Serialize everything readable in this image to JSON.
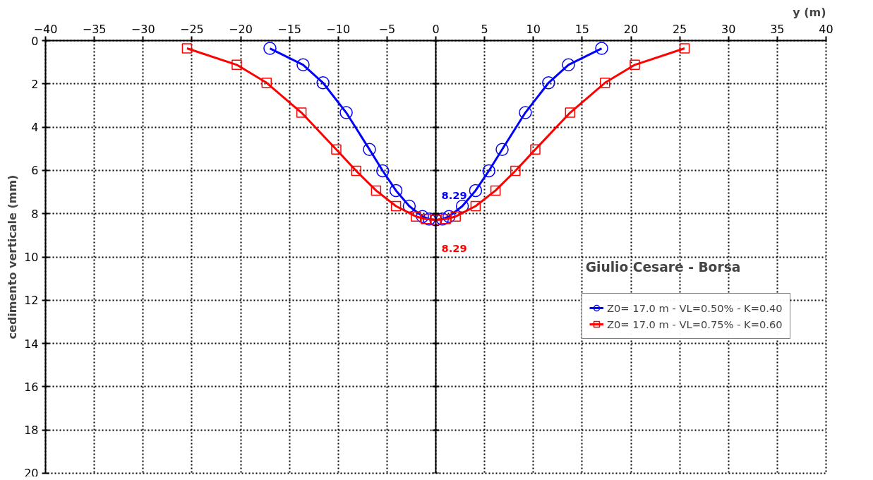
{
  "chart_data": {
    "type": "line",
    "title": "Giulio Cesare - Borsa",
    "xlabel": "y (m)",
    "ylabel": "cedimento verticale (mm)",
    "xlim": [
      -40,
      40
    ],
    "xticks": [
      -40,
      -35,
      -30,
      -25,
      -20,
      -15,
      -10,
      -5,
      0,
      5,
      10,
      15,
      20,
      25,
      30,
      35,
      40
    ],
    "ylim": [
      20,
      0
    ],
    "yticks": [
      0,
      2,
      4,
      6,
      8,
      10,
      12,
      14,
      16,
      18,
      20
    ],
    "grid": true,
    "legend": "right",
    "annotations": [
      {
        "text": "8.29",
        "x": 0,
        "y": 8.29
      },
      {
        "text": "8.29",
        "x": 0,
        "y": 8.29
      }
    ],
    "series": [
      {
        "name": "Z0= 17.0 m - VL=0.50% - K=0.40",
        "color": "#0000ff",
        "marker": "circle",
        "x": [
          -17,
          -13.6,
          -11.56,
          -9.18,
          -6.8,
          -5.44,
          -4.08,
          -2.72,
          -1.36,
          -0.68,
          0,
          0.68,
          1.36,
          2.72,
          4.08,
          5.44,
          6.8,
          9.18,
          11.56,
          13.6,
          17
        ],
        "values": [
          0.36,
          1.12,
          1.95,
          3.33,
          5.03,
          6.02,
          6.93,
          7.65,
          8.13,
          8.25,
          8.29,
          8.25,
          8.13,
          7.65,
          6.93,
          6.02,
          5.03,
          3.33,
          1.95,
          1.12,
          0.36
        ]
      },
      {
        "name": "Z0= 17.0 m - VL=0.75% - K=0.60",
        "color": "#ff0000",
        "marker": "square",
        "x": [
          -25.5,
          -20.4,
          -17.34,
          -13.77,
          -10.2,
          -8.16,
          -6.12,
          -4.08,
          -2.04,
          -1.02,
          0,
          1.02,
          2.04,
          4.08,
          6.12,
          8.16,
          10.2,
          13.77,
          17.34,
          20.4,
          25.5
        ],
        "values": [
          0.36,
          1.12,
          1.95,
          3.33,
          5.03,
          6.02,
          6.93,
          7.65,
          8.13,
          8.25,
          8.29,
          8.25,
          8.13,
          7.65,
          6.93,
          6.02,
          5.03,
          3.33,
          1.95,
          1.12,
          0.36
        ]
      }
    ]
  }
}
